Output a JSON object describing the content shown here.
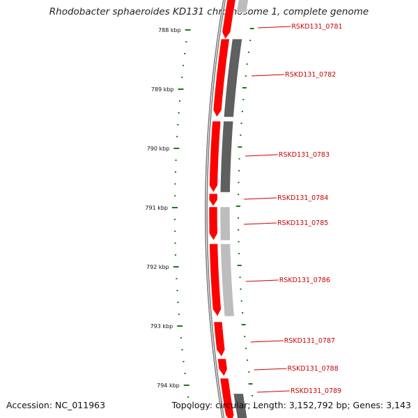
{
  "title": "Rhodobacter sphaeroides KD131 chromosome 1, complete genome",
  "footer": {
    "accession": "Accession: NC_011963",
    "topology": "Topology: circular; Length: 3,152,792 bp; Genes: 3,143"
  },
  "colors": {
    "backbone": "#7a7a7a",
    "forward_gene": "#ff0000",
    "reverse_gene_dark": "#5f5f5f",
    "reverse_gene_light": "#bdbdbd",
    "tick": "#1a7a1a",
    "gene_label": "#cc0000"
  },
  "scale": {
    "unit": "kbp",
    "labels": [
      "788 kbp",
      "789 kbp",
      "790 kbp",
      "791 kbp",
      "792 kbp",
      "793 kbp",
      "794 kbp"
    ]
  },
  "genes": [
    {
      "name": "RSKD131_0781",
      "strand": "+"
    },
    {
      "name": "RSKD131_0782",
      "strand": "-"
    },
    {
      "name": "RSKD131_0783",
      "strand": "-"
    },
    {
      "name": "RSKD131_0784",
      "strand": "+"
    },
    {
      "name": "RSKD131_0785",
      "strand": "-"
    },
    {
      "name": "RSKD131_0786",
      "strand": "-"
    },
    {
      "name": "RSKD131_0787",
      "strand": "+"
    },
    {
      "name": "RSKD131_0788",
      "strand": "+"
    },
    {
      "name": "RSKD131_0789",
      "strand": "+"
    }
  ]
}
